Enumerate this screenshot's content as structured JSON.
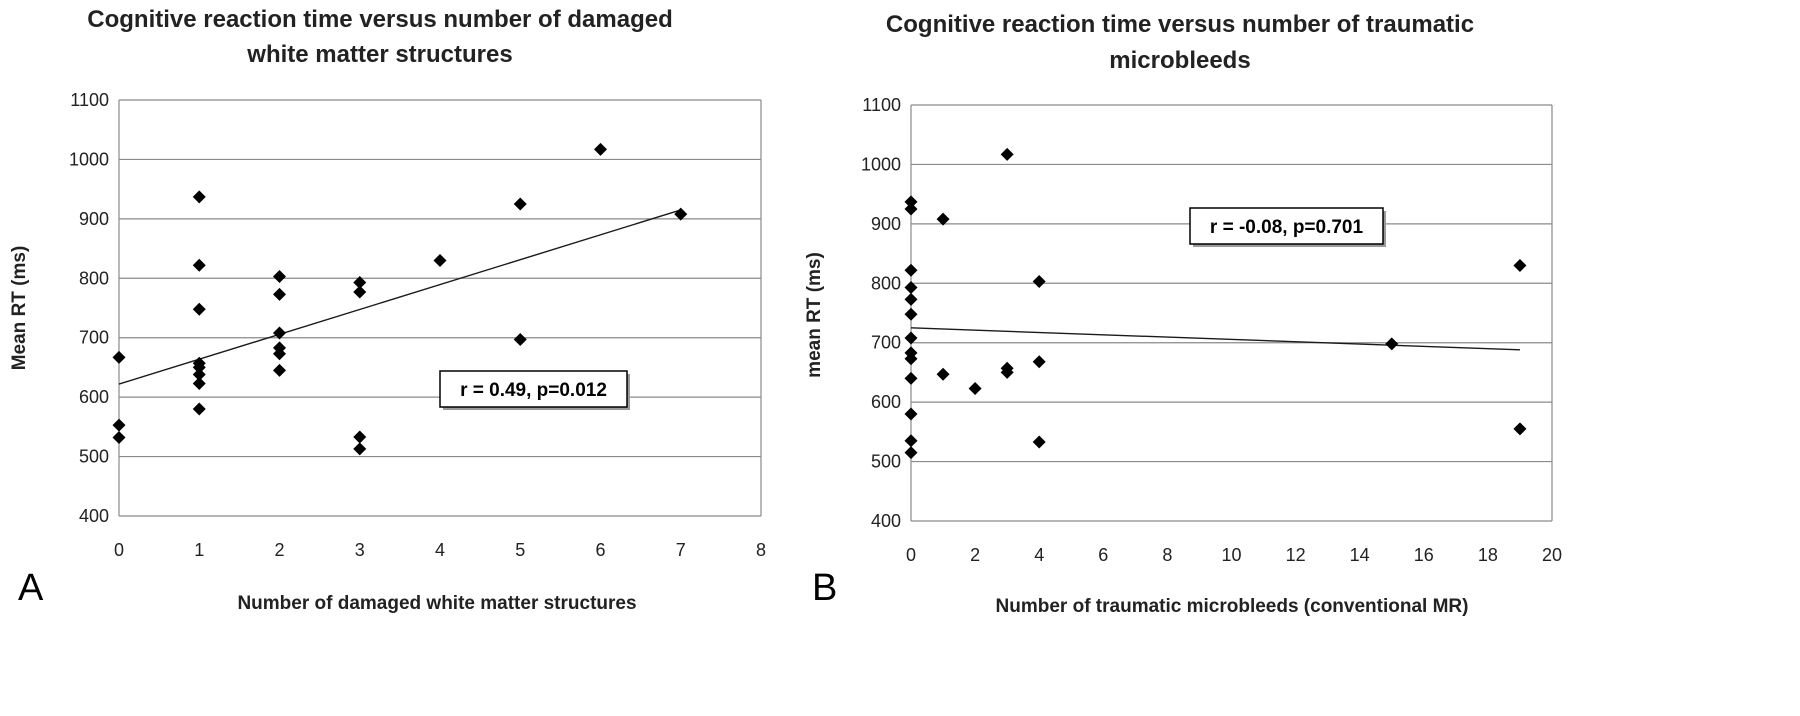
{
  "chart_data": [
    {
      "panel_label": "A",
      "type": "scatter",
      "title_lines": [
        "Cognitive reaction time versus number of damaged",
        "white matter structures"
      ],
      "xlabel": "Number of damaged white matter structures",
      "ylabel": "Mean RT (ms)",
      "xlim": [
        0,
        8
      ],
      "ylim": [
        400,
        1100
      ],
      "x_ticks": [
        "0",
        "1",
        "2",
        "3",
        "4",
        "5",
        "6",
        "7",
        "8"
      ],
      "y_ticks": [
        "400",
        "500",
        "600",
        "700",
        "800",
        "900",
        "1000",
        "1100"
      ],
      "grid": "horizontal",
      "points": [
        [
          0,
          667
        ],
        [
          0,
          553
        ],
        [
          0,
          532
        ],
        [
          1,
          937
        ],
        [
          1,
          822
        ],
        [
          1,
          748
        ],
        [
          1,
          657
        ],
        [
          1,
          650
        ],
        [
          1,
          638
        ],
        [
          1,
          623
        ],
        [
          1,
          580
        ],
        [
          2,
          803
        ],
        [
          2,
          773
        ],
        [
          2,
          708
        ],
        [
          2,
          683
        ],
        [
          2,
          673
        ],
        [
          2,
          645
        ],
        [
          3,
          793
        ],
        [
          3,
          777
        ],
        [
          3,
          533
        ],
        [
          3,
          513
        ],
        [
          4,
          830
        ],
        [
          5,
          925
        ],
        [
          5,
          697
        ],
        [
          6,
          1017
        ],
        [
          7,
          908
        ]
      ],
      "trendline": [
        [
          0,
          622
        ],
        [
          7,
          915
        ]
      ],
      "annotation": "r = 0.49, p=0.012"
    },
    {
      "panel_label": "B",
      "type": "scatter",
      "title_lines": [
        "Cognitive reaction time versus number of traumatic",
        "microbleeds"
      ],
      "xlabel": "Number of traumatic microbleeds (conventional MR)",
      "ylabel": "mean RT (ms)",
      "xlim": [
        0,
        20
      ],
      "ylim": [
        400,
        1100
      ],
      "x_ticks": [
        "0",
        "2",
        "4",
        "6",
        "8",
        "10",
        "12",
        "14",
        "16",
        "18",
        "20"
      ],
      "y_ticks": [
        "400",
        "500",
        "600",
        "700",
        "800",
        "900",
        "1000",
        "1100"
      ],
      "grid": "horizontal",
      "points": [
        [
          0,
          937
        ],
        [
          0,
          925
        ],
        [
          0,
          822
        ],
        [
          0,
          793
        ],
        [
          0,
          773
        ],
        [
          0,
          748
        ],
        [
          0,
          708
        ],
        [
          0,
          683
        ],
        [
          0,
          673
        ],
        [
          0,
          640
        ],
        [
          0,
          580
        ],
        [
          0,
          535
        ],
        [
          0,
          515
        ],
        [
          1,
          908
        ],
        [
          1,
          647
        ],
        [
          2,
          623
        ],
        [
          3,
          1017
        ],
        [
          3,
          657
        ],
        [
          3,
          650
        ],
        [
          4,
          803
        ],
        [
          4,
          668
        ],
        [
          4,
          533
        ],
        [
          15,
          698
        ],
        [
          19,
          830
        ],
        [
          19,
          555
        ]
      ],
      "trendline": [
        [
          0,
          725
        ],
        [
          19,
          688
        ]
      ],
      "annotation": "r = -0.08, p=0.701"
    }
  ]
}
